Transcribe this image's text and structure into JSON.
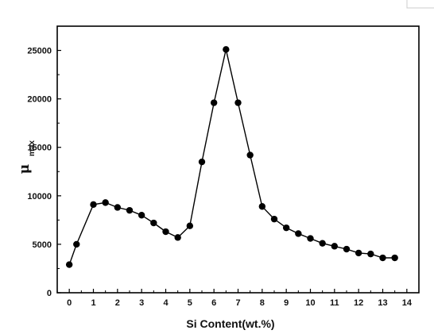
{
  "chart_data": {
    "type": "line",
    "xlabel": "Si Content(wt.%)",
    "ylabel": {
      "main": "μ",
      "sub": "max"
    },
    "xlim": [
      -0.5,
      14.5
    ],
    "ylim": [
      0,
      27500
    ],
    "x_ticks": [
      "0",
      "1",
      "2",
      "3",
      "4",
      "5",
      "6",
      "7",
      "8",
      "9",
      "10",
      "11",
      "12",
      "13",
      "14"
    ],
    "y_ticks": [
      "0",
      "5000",
      "10000",
      "15000",
      "20000",
      "25000"
    ],
    "marker": "filled-circle",
    "line_style": "solid",
    "color": "#000000",
    "grid": false,
    "series": [
      {
        "x": [
          0,
          0.3,
          1,
          1.5,
          2,
          2.5,
          3,
          3.5,
          4,
          4.5,
          5,
          5.5,
          6,
          6.5,
          7,
          7.5,
          8,
          8.5,
          9,
          9.5,
          10,
          10.5,
          11,
          11.5,
          12,
          12.5,
          13,
          13.5
        ],
        "y": [
          2900,
          5000,
          9100,
          9300,
          8800,
          8500,
          8000,
          7200,
          6300,
          5700,
          6900,
          13500,
          19600,
          25100,
          19600,
          14200,
          8900,
          7600,
          6700,
          6100,
          5600,
          5100,
          4800,
          4500,
          4100,
          4000,
          3600,
          3600
        ]
      }
    ]
  }
}
